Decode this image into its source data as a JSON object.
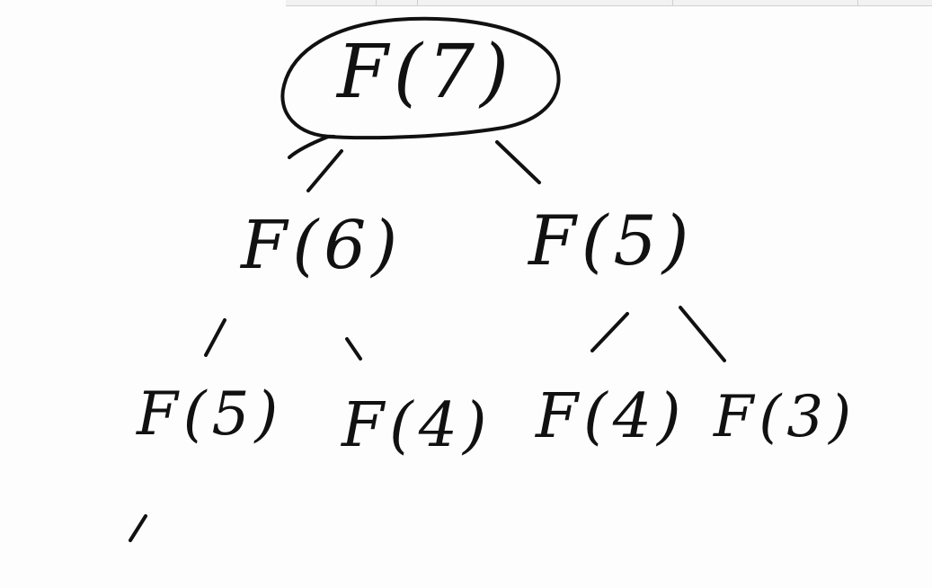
{
  "diagram": {
    "title": "",
    "ink_color": "#111111",
    "background_color": "#fdfdfd",
    "nodes": {
      "root": "F(7)",
      "left": "F(6)",
      "right": "F(5)",
      "left_left": "F(5)",
      "left_right": "F(4)",
      "right_left": "F(4)",
      "right_right": "F(3)"
    },
    "edges": [
      [
        "F(7)",
        "F(6)"
      ],
      [
        "F(7)",
        "F(5)"
      ],
      [
        "F(6)",
        "F(5)"
      ],
      [
        "F(6)",
        "F(4)"
      ],
      [
        "F(5)",
        "F(4)"
      ],
      [
        "F(5)",
        "F(3)"
      ],
      [
        "F(5)",
        "..."
      ]
    ],
    "highlighted_node": "F(7)"
  }
}
